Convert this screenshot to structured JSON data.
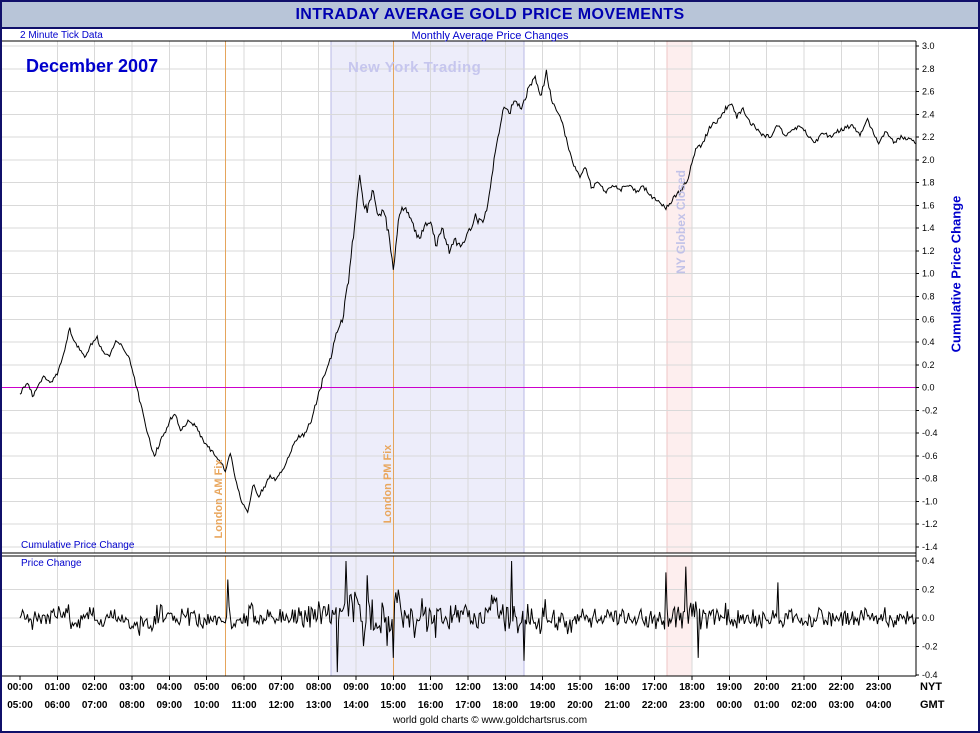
{
  "header": {
    "title": "INTRADAY AVERAGE GOLD PRICE MOVEMENTS"
  },
  "footer": {
    "credit": "world gold charts © www.goldchartsrus.com"
  },
  "colors": {
    "title_text": "#0000b0",
    "header_bg": "#b8c5d8",
    "border": "#10106a",
    "label_blue": "#0000cc",
    "grid": "#d9d9d9",
    "zero_line": "#cc00cc",
    "series": "#000000",
    "frame": "#000000",
    "fix_line": "#e5a55c",
    "fix_label": "#e9a75e",
    "ny_band_fill": "#ededfa",
    "ny_band_border": "#b9b9e6",
    "ny_label": "#c6c6ee",
    "globex_fill": "#fdeeee",
    "globex_border": "#eec6c6",
    "globex_label": "#c2c2e8"
  },
  "chart_data": {
    "type": "line",
    "title": "INTRADAY AVERAGE GOLD PRICE MOVEMENTS",
    "subtitle": "Monthly Average Price Changes",
    "tick_data_label": "2 Minute Tick Data",
    "month_label": "December 2007",
    "y_axis_title": "Cumulative Price Change",
    "tick_interval_minutes": 2,
    "seed": 20071219,
    "cumulative_noise": 0.02,
    "price_change_noise": 0.055,
    "panels": [
      {
        "label": "Cumulative Price Change",
        "ylim": [
          -1.4,
          3.0
        ],
        "ytick": 0.2
      },
      {
        "label": "Price Change",
        "ylim": [
          -0.4,
          0.4
        ],
        "ytick": 0.2
      }
    ],
    "x_axis": {
      "nyt_label": "NYT",
      "gmt_label": "GMT",
      "nyt_ticks": [
        "00:00",
        "01:00",
        "02:00",
        "03:00",
        "04:00",
        "05:00",
        "06:00",
        "07:00",
        "08:00",
        "09:00",
        "10:00",
        "11:00",
        "12:00",
        "13:00",
        "14:00",
        "15:00",
        "16:00",
        "17:00",
        "18:00",
        "19:00",
        "20:00",
        "21:00",
        "22:00",
        "23:00"
      ],
      "gmt_ticks": [
        "05:00",
        "06:00",
        "07:00",
        "08:00",
        "09:00",
        "10:00",
        "11:00",
        "12:00",
        "13:00",
        "14:00",
        "15:00",
        "16:00",
        "17:00",
        "18:00",
        "19:00",
        "20:00",
        "21:00",
        "22:00",
        "23:00",
        "00:00",
        "01:00",
        "02:00",
        "03:00",
        "04:00"
      ]
    },
    "annotations": {
      "ny_trading": {
        "label": "New York Trading",
        "start": 8.33,
        "end": 13.5
      },
      "globex_closed": {
        "label": "NY Globex Closed",
        "start": 17.33,
        "end": 18.0
      },
      "london_am_fix": {
        "label": "London AM Fix",
        "time": 5.5
      },
      "london_pm_fix": {
        "label": "London PM Fix",
        "time": 10.0
      }
    },
    "volatility": [
      [
        0,
        0.9
      ],
      [
        2,
        0.9
      ],
      [
        3,
        1.1
      ],
      [
        5,
        1.0
      ],
      [
        7,
        0.9
      ],
      [
        8,
        1.4
      ],
      [
        9,
        1.8
      ],
      [
        11,
        1.5
      ],
      [
        13,
        1.6
      ],
      [
        14,
        1.4
      ],
      [
        15,
        1.1
      ],
      [
        16,
        0.9
      ],
      [
        17,
        1.0
      ],
      [
        18,
        1.3
      ],
      [
        19,
        1.0
      ],
      [
        21,
        0.85
      ],
      [
        24,
        0.85
      ]
    ],
    "cumulative_keypoints": [
      [
        0,
        -0.05
      ],
      [
        0.2,
        0.05
      ],
      [
        0.35,
        -0.08
      ],
      [
        0.5,
        0.02
      ],
      [
        0.65,
        0.1
      ],
      [
        0.8,
        0.04
      ],
      [
        1.0,
        0.12
      ],
      [
        1.17,
        0.3
      ],
      [
        1.33,
        0.52
      ],
      [
        1.45,
        0.4
      ],
      [
        1.6,
        0.34
      ],
      [
        1.75,
        0.27
      ],
      [
        1.9,
        0.38
      ],
      [
        2.05,
        0.45
      ],
      [
        2.2,
        0.32
      ],
      [
        2.4,
        0.27
      ],
      [
        2.6,
        0.42
      ],
      [
        2.75,
        0.34
      ],
      [
        2.9,
        0.28
      ],
      [
        3.0,
        0.15
      ],
      [
        3.2,
        -0.1
      ],
      [
        3.45,
        -0.45
      ],
      [
        3.6,
        -0.6
      ],
      [
        3.8,
        -0.45
      ],
      [
        4.0,
        -0.3
      ],
      [
        4.15,
        -0.22
      ],
      [
        4.3,
        -0.38
      ],
      [
        4.5,
        -0.3
      ],
      [
        4.7,
        -0.33
      ],
      [
        4.9,
        -0.46
      ],
      [
        5.1,
        -0.55
      ],
      [
        5.3,
        -0.62
      ],
      [
        5.5,
        -0.72
      ],
      [
        5.65,
        -0.57
      ],
      [
        5.8,
        -0.85
      ],
      [
        5.95,
        -1.02
      ],
      [
        6.1,
        -1.1
      ],
      [
        6.25,
        -0.85
      ],
      [
        6.4,
        -0.95
      ],
      [
        6.55,
        -0.87
      ],
      [
        6.7,
        -0.78
      ],
      [
        6.85,
        -0.82
      ],
      [
        7.0,
        -0.74
      ],
      [
        7.2,
        -0.6
      ],
      [
        7.4,
        -0.45
      ],
      [
        7.6,
        -0.42
      ],
      [
        7.8,
        -0.3
      ],
      [
        8.0,
        -0.05
      ],
      [
        8.2,
        0.16
      ],
      [
        8.35,
        0.3
      ],
      [
        8.5,
        0.5
      ],
      [
        8.65,
        0.62
      ],
      [
        8.8,
        0.95
      ],
      [
        8.95,
        1.4
      ],
      [
        9.1,
        1.88
      ],
      [
        9.2,
        1.64
      ],
      [
        9.3,
        1.55
      ],
      [
        9.45,
        1.74
      ],
      [
        9.6,
        1.5
      ],
      [
        9.75,
        1.56
      ],
      [
        9.9,
        1.3
      ],
      [
        10.0,
        1.05
      ],
      [
        10.15,
        1.5
      ],
      [
        10.3,
        1.6
      ],
      [
        10.5,
        1.44
      ],
      [
        10.7,
        1.3
      ],
      [
        10.85,
        1.42
      ],
      [
        11.0,
        1.46
      ],
      [
        11.15,
        1.25
      ],
      [
        11.3,
        1.4
      ],
      [
        11.5,
        1.2
      ],
      [
        11.65,
        1.3
      ],
      [
        11.8,
        1.24
      ],
      [
        12.0,
        1.35
      ],
      [
        12.2,
        1.5
      ],
      [
        12.35,
        1.44
      ],
      [
        12.5,
        1.55
      ],
      [
        12.65,
        1.9
      ],
      [
        12.8,
        2.2
      ],
      [
        12.95,
        2.45
      ],
      [
        13.1,
        2.4
      ],
      [
        13.25,
        2.55
      ],
      [
        13.4,
        2.45
      ],
      [
        13.6,
        2.6
      ],
      [
        13.8,
        2.72
      ],
      [
        13.95,
        2.55
      ],
      [
        14.1,
        2.78
      ],
      [
        14.25,
        2.5
      ],
      [
        14.4,
        2.42
      ],
      [
        14.55,
        2.3
      ],
      [
        14.7,
        2.1
      ],
      [
        14.85,
        1.95
      ],
      [
        15.0,
        1.85
      ],
      [
        15.15,
        1.95
      ],
      [
        15.3,
        1.76
      ],
      [
        15.5,
        1.8
      ],
      [
        15.7,
        1.72
      ],
      [
        15.9,
        1.78
      ],
      [
        16.1,
        1.74
      ],
      [
        16.3,
        1.78
      ],
      [
        16.5,
        1.72
      ],
      [
        16.7,
        1.76
      ],
      [
        16.9,
        1.68
      ],
      [
        17.1,
        1.65
      ],
      [
        17.3,
        1.58
      ],
      [
        17.5,
        1.66
      ],
      [
        17.7,
        1.72
      ],
      [
        17.9,
        1.85
      ],
      [
        18.1,
        2.1
      ],
      [
        18.3,
        2.15
      ],
      [
        18.5,
        2.3
      ],
      [
        18.7,
        2.35
      ],
      [
        18.9,
        2.45
      ],
      [
        19.05,
        2.5
      ],
      [
        19.2,
        2.38
      ],
      [
        19.35,
        2.45
      ],
      [
        19.5,
        2.35
      ],
      [
        19.7,
        2.28
      ],
      [
        19.9,
        2.22
      ],
      [
        20.1,
        2.2
      ],
      [
        20.3,
        2.3
      ],
      [
        20.5,
        2.22
      ],
      [
        20.7,
        2.26
      ],
      [
        20.9,
        2.3
      ],
      [
        21.1,
        2.22
      ],
      [
        21.3,
        2.15
      ],
      [
        21.5,
        2.25
      ],
      [
        21.7,
        2.2
      ],
      [
        21.9,
        2.25
      ],
      [
        22.1,
        2.28
      ],
      [
        22.3,
        2.3
      ],
      [
        22.5,
        2.22
      ],
      [
        22.7,
        2.35
      ],
      [
        22.85,
        2.25
      ],
      [
        23.0,
        2.15
      ],
      [
        23.2,
        2.25
      ],
      [
        23.4,
        2.15
      ],
      [
        23.6,
        2.2
      ],
      [
        23.8,
        2.18
      ],
      [
        24,
        2.15
      ]
    ],
    "pc_spikes": [
      [
        5.55,
        0.27
      ],
      [
        8.5,
        -0.38
      ],
      [
        8.73,
        0.4
      ],
      [
        9.3,
        0.3
      ],
      [
        10.0,
        -0.28
      ],
      [
        13.17,
        0.4
      ],
      [
        13.5,
        -0.3
      ],
      [
        17.3,
        0.32
      ],
      [
        17.83,
        0.36
      ],
      [
        18.17,
        -0.28
      ],
      [
        20.3,
        0.25
      ]
    ]
  }
}
